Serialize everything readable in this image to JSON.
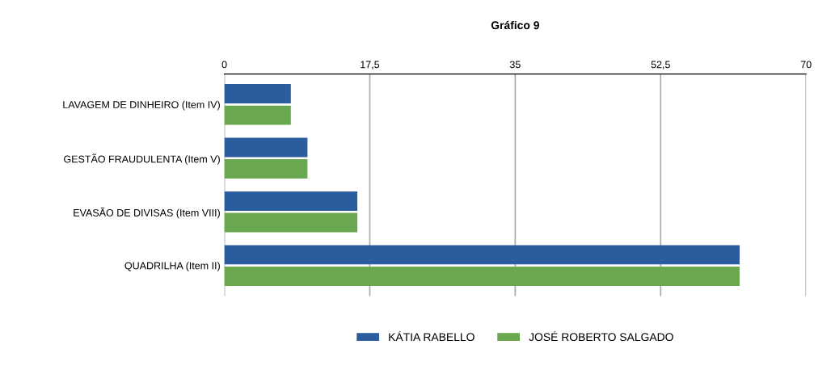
{
  "chart_data": {
    "type": "bar",
    "orientation": "horizontal",
    "title": "Gráfico 9",
    "categories": [
      "LAVAGEM DE DINHEIRO (Item IV)",
      "GESTÃO FRAUDULENTA (Item V)",
      "EVASÃO DE DIVISAS (Item VIII)",
      "QUADRILHA (Item II)"
    ],
    "series": [
      {
        "name": "KÁTIA RABELLO",
        "color": "#2b5c9e",
        "values": [
          8,
          10,
          16,
          62
        ]
      },
      {
        "name": "JOSÉ ROBERTO SALGADO",
        "color": "#6aa84f",
        "values": [
          8,
          10,
          16,
          62
        ]
      }
    ],
    "xlim": [
      0,
      70
    ],
    "xticks": [
      0,
      {
        "value": 17.5,
        "label": "17,5"
      },
      35,
      {
        "value": 52.5,
        "label": "52,5"
      },
      70
    ],
    "grid": "x",
    "legend": "bottom"
  }
}
